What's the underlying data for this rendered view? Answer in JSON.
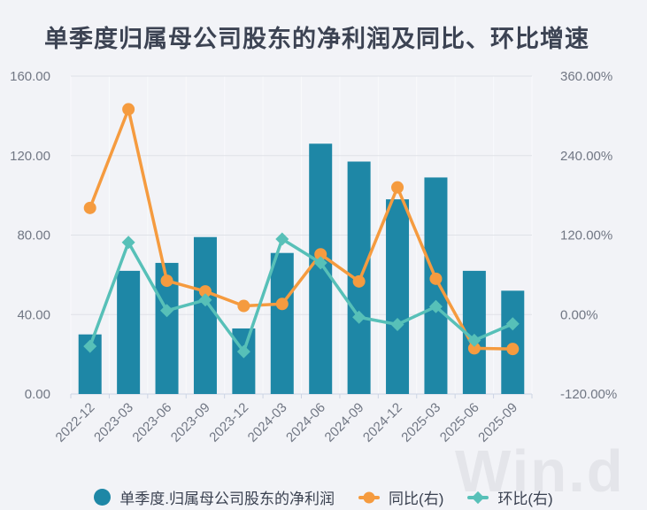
{
  "title": "单季度归属母公司股东的净利润及同比、环比增速",
  "watermark": "Win.d",
  "colors": {
    "background": "#f2f3f7",
    "bar": "#1e87a6",
    "yoy": "#f59b3f",
    "qoq": "#57c0b8",
    "grid_line": "#dfe2e7",
    "grid_vertical": "#f9fafc",
    "axis_line": "#ccd4e4",
    "axis_label": "#717784",
    "title_color": "#3c4353",
    "legend_text": "#3a4150",
    "watermark_color": "#e4e5ea"
  },
  "chart_data": {
    "type": "combo-bar-line",
    "title": "单季度归属母公司股东的净利润及同比、环比增速",
    "categories": [
      "2022-12",
      "2023-03",
      "2023-06",
      "2023-09",
      "2023-12",
      "2024-03",
      "2024-06",
      "2024-09",
      "2024-12",
      "2025-03",
      "2025-06",
      "2025-09"
    ],
    "series": [
      {
        "name": "单季度.归属母公司股东的净利润",
        "type": "bar",
        "yaxis": "left",
        "values": [
          30,
          62,
          66,
          79,
          33,
          71,
          126,
          117,
          98,
          109,
          62,
          52
        ]
      },
      {
        "name": "同比(右)",
        "type": "line",
        "marker": "circle",
        "yaxis": "right",
        "values": [
          161,
          310,
          51,
          35,
          13,
          16,
          91,
          50,
          192,
          54,
          -51,
          -52
        ]
      },
      {
        "name": "环比(右)",
        "type": "line",
        "marker": "diamond",
        "yaxis": "right",
        "values": [
          -48,
          109,
          6,
          22,
          -56,
          114,
          78,
          -4,
          -15,
          12,
          -39,
          -14
        ]
      }
    ],
    "left_axis": {
      "min": 0,
      "max": 160,
      "tick_labels": [
        "160.00",
        "120.00",
        "80.00",
        "40.00",
        "0.00"
      ]
    },
    "right_axis": {
      "min": -120,
      "max": 360,
      "tick_labels": [
        "360.00%",
        "240.00%",
        "120.00%",
        "0.00%",
        "-120.00%"
      ]
    },
    "grid": true,
    "legend_position": "bottom"
  },
  "legend": {
    "items": [
      {
        "label": "单季度.归属母公司股东的净利润",
        "marker": "circle",
        "color_key": "bar"
      },
      {
        "label": "同比(右)",
        "marker": "line-circle",
        "color_key": "yoy"
      },
      {
        "label": "环比(右)",
        "marker": "line-diamond",
        "color_key": "qoq"
      }
    ]
  }
}
